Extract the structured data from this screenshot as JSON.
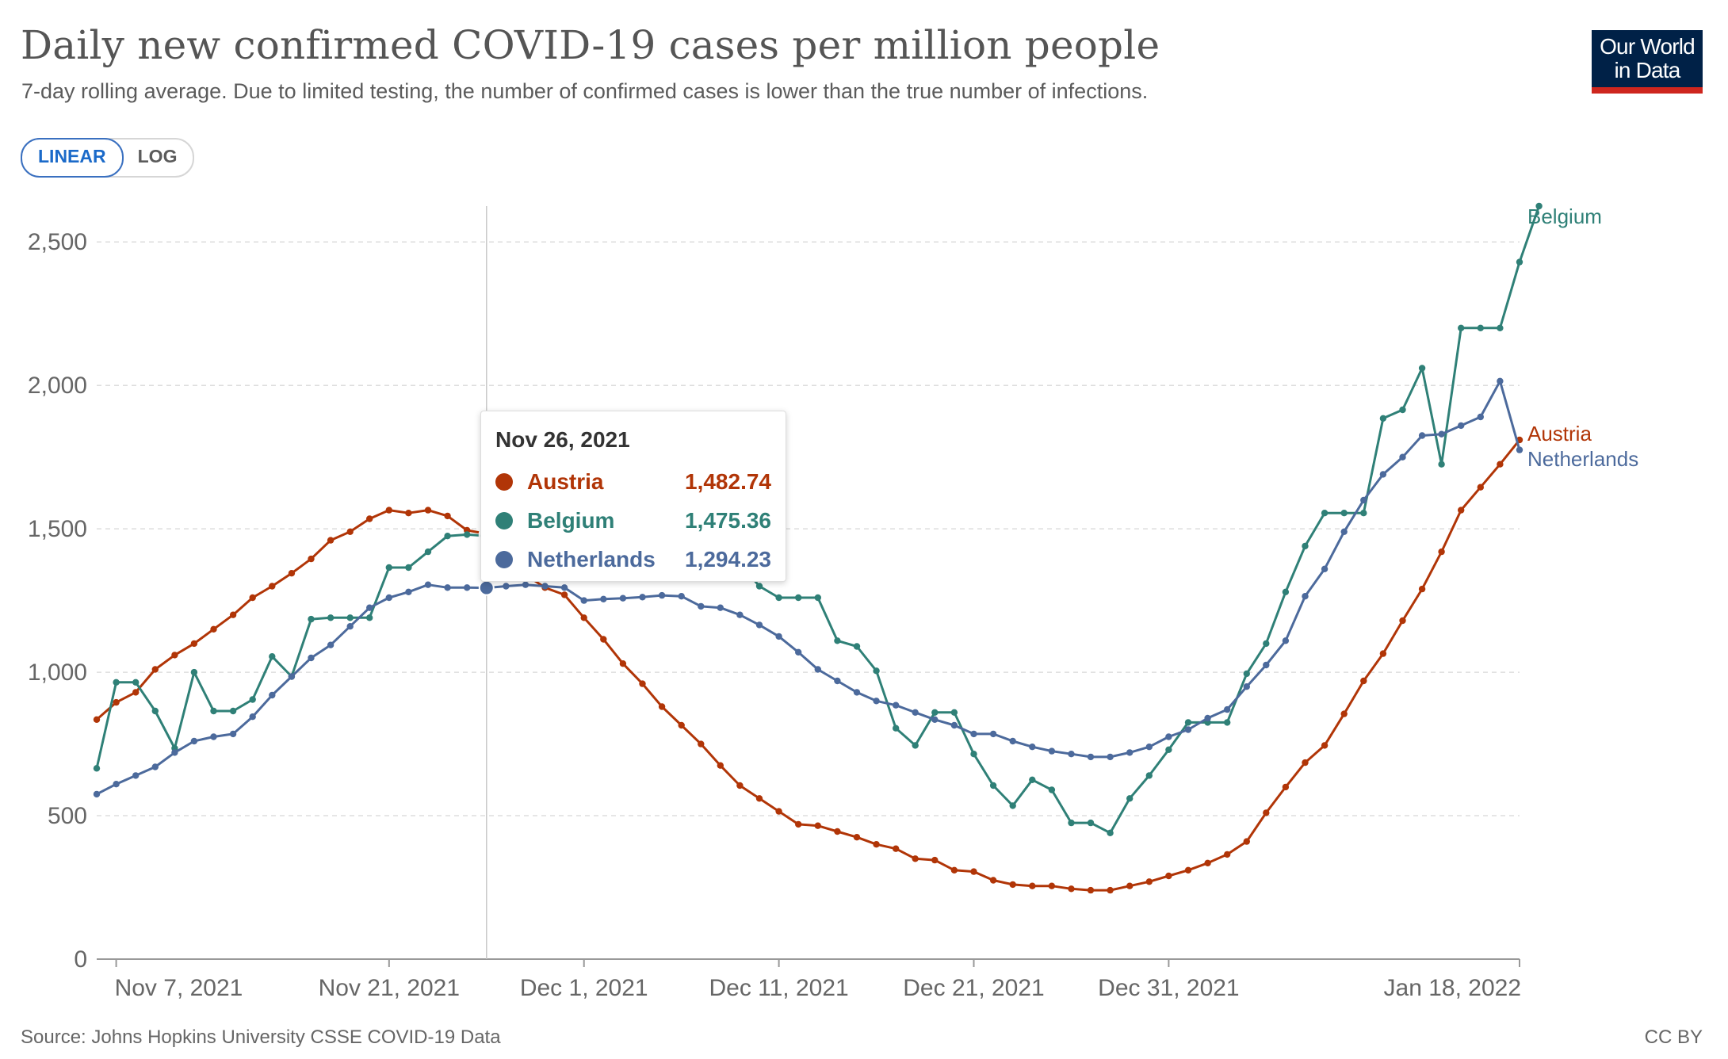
{
  "header": {
    "title": "Daily new confirmed COVID-19 cases per million people",
    "subtitle": "7-day rolling average. Due to limited testing, the number of confirmed cases is lower than the true number of infections."
  },
  "logo": {
    "line1": "Our World",
    "line2": "in Data"
  },
  "scale_toggle": {
    "linear_label": "LINEAR",
    "log_label": "LOG",
    "selected": "LINEAR"
  },
  "tooltip": {
    "date": "Nov 26, 2021",
    "rows": [
      {
        "name": "Austria",
        "value": "1,482.74",
        "color": "#b13507"
      },
      {
        "name": "Belgium",
        "value": "1,475.36",
        "color": "#2f8077"
      },
      {
        "name": "Netherlands",
        "value": "1,294.23",
        "color": "#4c6a9c"
      }
    ]
  },
  "footer": {
    "source": "Source: Johns Hopkins University CSSE COVID-19 Data",
    "license": "CC BY"
  },
  "chart_data": {
    "type": "line",
    "title": "Daily new confirmed COVID-19 cases per million people",
    "subtitle": "7-day rolling average. Due to limited testing, the number of confirmed cases is lower than the true number of infections.",
    "x_start": "2021-11-06",
    "x_end": "2022-01-18",
    "x_ticks": [
      {
        "date": "2021-11-07",
        "label": "Nov 7, 2021"
      },
      {
        "date": "2021-11-21",
        "label": "Nov 21, 2021"
      },
      {
        "date": "2021-12-01",
        "label": "Dec 1, 2021"
      },
      {
        "date": "2021-12-11",
        "label": "Dec 11, 2021"
      },
      {
        "date": "2021-12-21",
        "label": "Dec 21, 2021"
      },
      {
        "date": "2021-12-31",
        "label": "Dec 31, 2021"
      },
      {
        "date": "2022-01-18",
        "label": "Jan 18, 2022"
      }
    ],
    "ylim": [
      0,
      2500
    ],
    "y_ticks": [
      {
        "value": 0,
        "label": "0"
      },
      {
        "value": 500,
        "label": "500"
      },
      {
        "value": 1000,
        "label": "1,000"
      },
      {
        "value": 1500,
        "label": "1,500"
      },
      {
        "value": 2000,
        "label": "2,000"
      },
      {
        "value": 2500,
        "label": "2,500"
      }
    ],
    "grid": "horizontal dashed",
    "highlight_date": "2021-11-26",
    "series": [
      {
        "name": "Austria",
        "color": "#b13507",
        "values": [
          835,
          895,
          930,
          1010,
          1060,
          1100,
          1150,
          1200,
          1260,
          1300,
          1345,
          1395,
          1460,
          1490,
          1535,
          1565,
          1555,
          1565,
          1545,
          1495,
          1482.74,
          1455,
          1340,
          1295,
          1270,
          1190,
          1115,
          1030,
          960,
          880,
          815,
          750,
          675,
          605,
          560,
          515,
          470,
          465,
          445,
          425,
          400,
          385,
          350,
          345,
          310,
          305,
          275,
          260,
          255,
          255,
          245,
          240,
          240,
          255,
          270,
          290,
          310,
          335,
          365,
          410,
          510,
          600,
          685,
          745,
          855,
          970,
          1065,
          1180,
          1290,
          1420,
          1565,
          1645,
          1725,
          1810
        ]
      },
      {
        "name": "Belgium",
        "color": "#2f8077",
        "values": [
          665,
          965,
          965,
          865,
          735,
          1000,
          865,
          865,
          905,
          1055,
          985,
          1185,
          1190,
          1190,
          1190,
          1365,
          1365,
          1420,
          1475,
          1480,
          1475.36,
          1480,
          1480,
          1500,
          1600,
          1545,
          1595,
          1555,
          1555,
          1550,
          1550,
          1450,
          1400,
          1380,
          1300,
          1260,
          1260,
          1260,
          1110,
          1090,
          1005,
          805,
          745,
          860,
          860,
          715,
          605,
          535,
          625,
          590,
          475,
          475,
          440,
          560,
          640,
          730,
          825,
          825,
          825,
          995,
          1100,
          1280,
          1440,
          1555,
          1555,
          1555,
          1885,
          1915,
          2060,
          1725,
          2200,
          2200,
          2200,
          2430,
          2625
        ]
      },
      {
        "name": "Netherlands",
        "color": "#4c6a9c",
        "values": [
          575,
          610,
          640,
          670,
          720,
          760,
          775,
          785,
          845,
          920,
          985,
          1050,
          1095,
          1160,
          1225,
          1260,
          1280,
          1305,
          1295,
          1295,
          1294.23,
          1300,
          1305,
          1300,
          1295,
          1250,
          1255,
          1258,
          1262,
          1268,
          1265,
          1230,
          1225,
          1200,
          1165,
          1125,
          1070,
          1010,
          970,
          930,
          900,
          885,
          860,
          835,
          815,
          785,
          785,
          760,
          740,
          725,
          715,
          705,
          705,
          720,
          740,
          775,
          800,
          840,
          870,
          950,
          1025,
          1110,
          1265,
          1360,
          1490,
          1600,
          1690,
          1750,
          1825,
          1830,
          1860,
          1890,
          2015,
          1775
        ]
      }
    ],
    "end_labels": [
      "Belgium",
      "Austria",
      "Netherlands"
    ]
  }
}
